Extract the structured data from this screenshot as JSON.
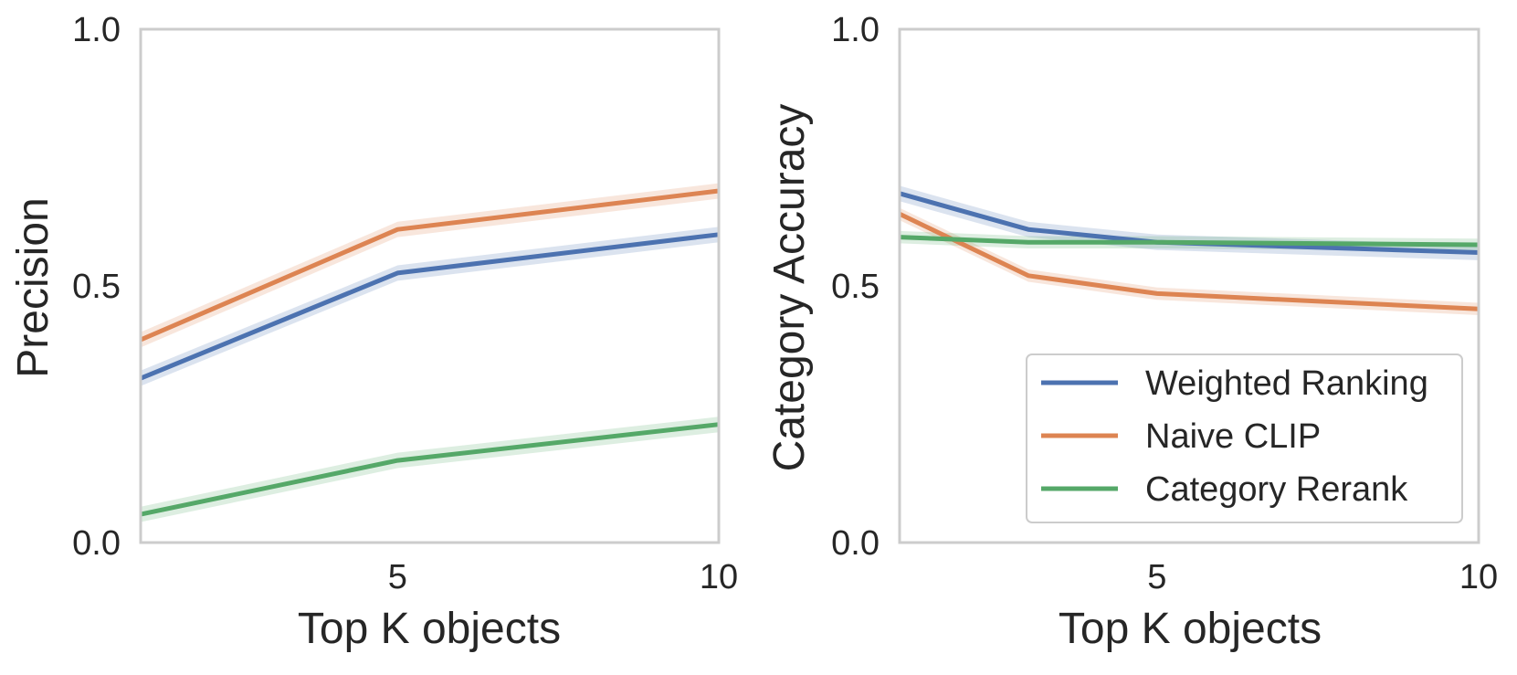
{
  "chart_data": [
    {
      "type": "line",
      "title": "",
      "xlabel": "Top K objects",
      "ylabel": "Precision",
      "x": [
        1,
        5,
        10
      ],
      "xticks": [
        "5",
        "10"
      ],
      "xtick_values": [
        5,
        10
      ],
      "yticks": [
        "0.0",
        "0.5",
        "1.0"
      ],
      "ytick_values": [
        0.0,
        0.5,
        1.0
      ],
      "xlim": [
        1,
        10
      ],
      "ylim": [
        0,
        1
      ],
      "grid": false,
      "series": [
        {
          "name": "Weighted Ranking",
          "color": "#4c72b0",
          "values": [
            0.32,
            0.525,
            0.6
          ],
          "band": 0.015
        },
        {
          "name": "Naive CLIP",
          "color": "#dd8452",
          "values": [
            0.395,
            0.61,
            0.685
          ],
          "band": 0.015
        },
        {
          "name": "Category Rerank",
          "color": "#55a868",
          "values": [
            0.055,
            0.16,
            0.23
          ],
          "band": 0.015
        }
      ]
    },
    {
      "type": "line",
      "title": "",
      "xlabel": "Top K objects",
      "ylabel": "Category Accuracy",
      "x": [
        1,
        3,
        5,
        10
      ],
      "xticks": [
        "5",
        "10"
      ],
      "xtick_values": [
        5,
        10
      ],
      "yticks": [
        "0.0",
        "0.5",
        "1.0"
      ],
      "ytick_values": [
        0.0,
        0.5,
        1.0
      ],
      "xlim": [
        1,
        10
      ],
      "ylim": [
        0,
        1
      ],
      "grid": false,
      "legend": {
        "position": "lower-right"
      },
      "series": [
        {
          "name": "Weighted Ranking",
          "color": "#4c72b0",
          "values": [
            0.68,
            0.61,
            0.585,
            0.565
          ],
          "band": 0.015
        },
        {
          "name": "Naive CLIP",
          "color": "#dd8452",
          "values": [
            0.64,
            0.52,
            0.485,
            0.455
          ],
          "band": 0.012
        },
        {
          "name": "Category Rerank",
          "color": "#55a868",
          "values": [
            0.595,
            0.585,
            0.585,
            0.58
          ],
          "band": 0.012
        }
      ]
    }
  ]
}
